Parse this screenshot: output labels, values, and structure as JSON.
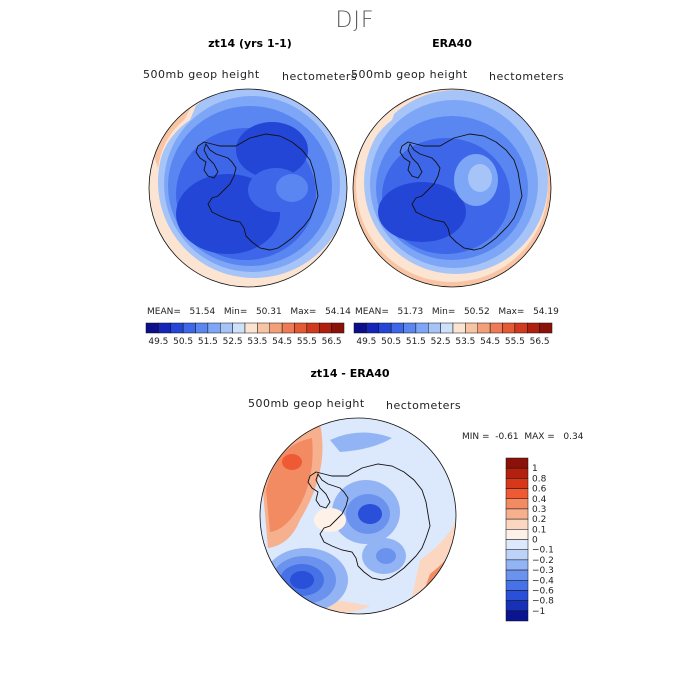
{
  "figure": {
    "title": "DJF"
  },
  "panels": [
    {
      "title": "zt14 (yrs 1-1)",
      "variable": "500mb geop height",
      "units": "hectometers",
      "stats": {
        "mean_label": "MEAN=",
        "mean": "51.54",
        "min_label": "Min=",
        "min": "50.31",
        "max_label": "Max=",
        "max": "54.14"
      },
      "colorbar_ticks": [
        "49.5",
        "50.5",
        "51.5",
        "52.5",
        "53.5",
        "54.5",
        "55.5",
        "56.5"
      ]
    },
    {
      "title": "ERA40",
      "variable": "500mb geop height",
      "units": "hectometers",
      "stats": {
        "mean_label": "MEAN=",
        "mean": "51.73",
        "min_label": "Min=",
        "min": "50.52",
        "max_label": "Max=",
        "max": "54.19"
      },
      "colorbar_ticks": [
        "49.5",
        "50.5",
        "51.5",
        "52.5",
        "53.5",
        "54.5",
        "55.5",
        "56.5"
      ]
    },
    {
      "title": "zt14 - ERA40",
      "variable": "500mb geop height",
      "units": "hectometers",
      "stats": {
        "min_label": "MIN =",
        "min": "-0.61",
        "max_label": "MAX =",
        "max": "0.34"
      },
      "colorbar_ticks": [
        "1",
        "0.8",
        "0.6",
        "0.4",
        "0.3",
        "0.2",
        "0.1",
        "0",
        "−0.1",
        "−0.2",
        "−0.3",
        "−0.4",
        "−0.6",
        "−0.8",
        "−1"
      ]
    }
  ],
  "colors": {
    "abs_scale": [
      "#0b0f8a",
      "#1525b8",
      "#2446d6",
      "#3d66e8",
      "#5a86f2",
      "#7ea6f6",
      "#a6c4f8",
      "#cfe0fa",
      "#fbe4d2",
      "#f8c4a4",
      "#f3a07a",
      "#ee7b55",
      "#e45a34",
      "#d13a1c",
      "#b0200f",
      "#8a1208"
    ],
    "diff_scale": [
      "#8a1208",
      "#b42010",
      "#d8381a",
      "#ef5a34",
      "#f28a62",
      "#f6b08e",
      "#fbd6c0",
      "#fdf1e8",
      "#dce8fb",
      "#bcd2f8",
      "#93b4f4",
      "#6b93ee",
      "#4672e6",
      "#2a4fd8",
      "#1630b8",
      "#0a1490"
    ]
  },
  "chart_data": [
    {
      "type": "heatmap",
      "title": "zt14 (yrs 1-1)",
      "subtitle": "500mb geop height",
      "units": "hectometers",
      "projection": "south-polar-stereographic",
      "levels": [
        49.5,
        50.0,
        50.5,
        51.0,
        51.5,
        52.0,
        52.5,
        53.0,
        53.5,
        54.0,
        54.5,
        55.0,
        55.5,
        56.0,
        56.5
      ],
      "mean": 51.54,
      "min": 50.31,
      "max": 54.14
    },
    {
      "type": "heatmap",
      "title": "ERA40",
      "subtitle": "500mb geop height",
      "units": "hectometers",
      "projection": "south-polar-stereographic",
      "levels": [
        49.5,
        50.0,
        50.5,
        51.0,
        51.5,
        52.0,
        52.5,
        53.0,
        53.5,
        54.0,
        54.5,
        55.0,
        55.5,
        56.0,
        56.5
      ],
      "mean": 51.73,
      "min": 50.52,
      "max": 54.19
    },
    {
      "type": "heatmap",
      "title": "zt14 - ERA40",
      "subtitle": "500mb geop height",
      "units": "hectometers",
      "projection": "south-polar-stereographic",
      "levels": [
        1,
        0.8,
        0.6,
        0.4,
        0.3,
        0.2,
        0.1,
        0,
        -0.1,
        -0.2,
        -0.3,
        -0.4,
        -0.6,
        -0.8,
        -1
      ],
      "min": -0.61,
      "max": 0.34
    }
  ]
}
